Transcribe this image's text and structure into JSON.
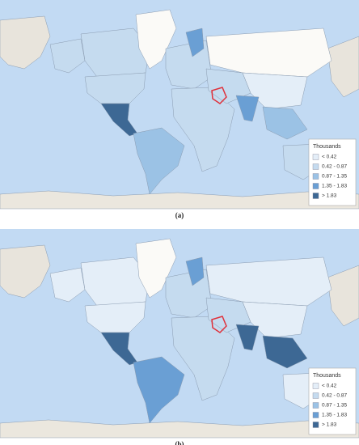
{
  "maps": [
    {
      "caption": "(a)",
      "legend": {
        "title": "Thousands",
        "items": [
          {
            "label": "< 0.42",
            "color": "#e4eef8"
          },
          {
            "label": "0.42 - 0.87",
            "color": "#c5dbef"
          },
          {
            "label": "0.87 - 1.35",
            "color": "#9bc2e5"
          },
          {
            "label": "1.35 - 1.83",
            "color": "#6a9fd4"
          },
          {
            "label": "> 1.83",
            "color": "#3d6894"
          }
        ]
      }
    },
    {
      "caption": "(b)",
      "legend": {
        "title": "Thousands",
        "items": [
          {
            "label": "< 0.42",
            "color": "#e4eef8"
          },
          {
            "label": "0.42 - 0.87",
            "color": "#c5dbef"
          },
          {
            "label": "0.87 - 1.35",
            "color": "#9bc2e5"
          },
          {
            "label": "1.35 - 1.83",
            "color": "#6a9fd4"
          },
          {
            "label": "> 1.83",
            "color": "#3d6894"
          }
        ]
      }
    }
  ]
}
